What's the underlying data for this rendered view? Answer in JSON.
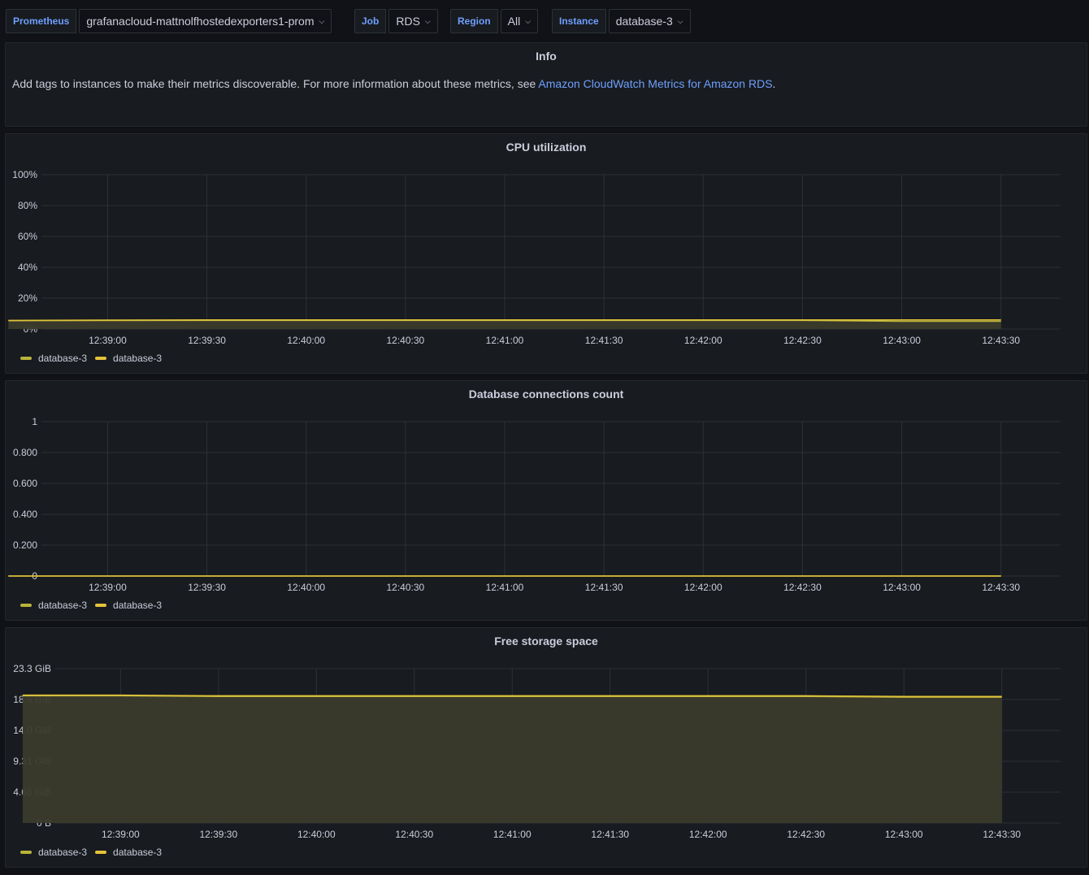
{
  "variables": [
    {
      "label": "Prometheus",
      "value": "grafanacloud-mattnolfhostedexporters1-prom"
    },
    {
      "label": "Job",
      "value": "RDS"
    },
    {
      "label": "Region",
      "value": "All"
    },
    {
      "label": "Instance",
      "value": "database-3"
    }
  ],
  "info": {
    "title": "Info",
    "text": "Add tags to instances to make their metrics discoverable. For more information about these metrics, see ",
    "link": "Amazon CloudWatch Metrics for Amazon RDS",
    "suffix": "."
  },
  "colors": {
    "series_a": "#b9b43a",
    "series_b": "#e4c33a",
    "fill": "#3a3a2c",
    "grid": "#2c3235"
  },
  "charts": [
    {
      "title": "CPU utilization",
      "chart_data": {
        "type": "area",
        "x": [
          "12:38:30",
          "12:39:00",
          "12:39:30",
          "12:40:00",
          "12:40:30",
          "12:41:00",
          "12:41:30",
          "12:42:00",
          "12:42:30",
          "12:43:00",
          "12:43:30"
        ],
        "xticks": [
          "12:39:00",
          "12:39:30",
          "12:40:00",
          "12:40:30",
          "12:41:00",
          "12:41:30",
          "12:42:00",
          "12:42:30",
          "12:43:00",
          "12:43:30"
        ],
        "yticks": [
          "100%",
          "80%",
          "60%",
          "40%",
          "20%",
          "0%"
        ],
        "ylim": [
          0,
          100
        ],
        "series": [
          {
            "name": "database-3",
            "values": [
              5.4,
              5.5,
              5.6,
              5.6,
              5.6,
              5.6,
              5.6,
              5.6,
              5.6,
              5.0,
              5.0
            ]
          },
          {
            "name": "database-3",
            "values": [
              5.6,
              5.8,
              5.9,
              5.9,
              5.9,
              5.9,
              5.9,
              5.9,
              5.9,
              5.9,
              5.9
            ]
          }
        ],
        "legend": "bottom-left",
        "grid": true
      }
    },
    {
      "title": "Database connections count",
      "chart_data": {
        "type": "line",
        "x": [
          "12:38:30",
          "12:39:00",
          "12:39:30",
          "12:40:00",
          "12:40:30",
          "12:41:00",
          "12:41:30",
          "12:42:00",
          "12:42:30",
          "12:43:00",
          "12:43:30"
        ],
        "xticks": [
          "12:39:00",
          "12:39:30",
          "12:40:00",
          "12:40:30",
          "12:41:00",
          "12:41:30",
          "12:42:00",
          "12:42:30",
          "12:43:00",
          "12:43:30"
        ],
        "yticks": [
          "1",
          "0.800",
          "0.600",
          "0.400",
          "0.200",
          "0"
        ],
        "ylim": [
          0,
          1
        ],
        "series": [
          {
            "name": "database-3",
            "values": [
              0,
              0,
              0,
              0,
              0,
              0,
              0,
              0,
              0,
              0,
              0
            ]
          },
          {
            "name": "database-3",
            "values": [
              0,
              0,
              0,
              0,
              0,
              0,
              0,
              0,
              0,
              0,
              0
            ]
          }
        ],
        "legend": "bottom-left",
        "grid": true
      }
    },
    {
      "title": "Free storage space",
      "chart_data": {
        "type": "area",
        "x": [
          "12:38:30",
          "12:39:00",
          "12:39:30",
          "12:40:00",
          "12:40:30",
          "12:41:00",
          "12:41:30",
          "12:42:00",
          "12:42:30",
          "12:43:00",
          "12:43:30"
        ],
        "xticks": [
          "12:39:00",
          "12:39:30",
          "12:40:00",
          "12:40:30",
          "12:41:00",
          "12:41:30",
          "12:42:00",
          "12:42:30",
          "12:43:00",
          "12:43:30"
        ],
        "yticks": [
          "23.3 GiB",
          "18.6 GiB",
          "14.0 GiB",
          "9.31 GiB",
          "4.66 GiB",
          "0 B"
        ],
        "ylim": [
          0,
          23.3
        ],
        "series": [
          {
            "name": "database-3",
            "values": [
              19.2,
              19.2,
              19.1,
              19.1,
              19.1,
              19.1,
              19.1,
              19.1,
              19.1,
              19.0,
              19.0
            ]
          },
          {
            "name": "database-3",
            "values": [
              19.3,
              19.3,
              19.2,
              19.2,
              19.2,
              19.2,
              19.2,
              19.2,
              19.2,
              19.1,
              19.1
            ]
          }
        ],
        "legend": "bottom-left",
        "grid": true
      }
    }
  ]
}
